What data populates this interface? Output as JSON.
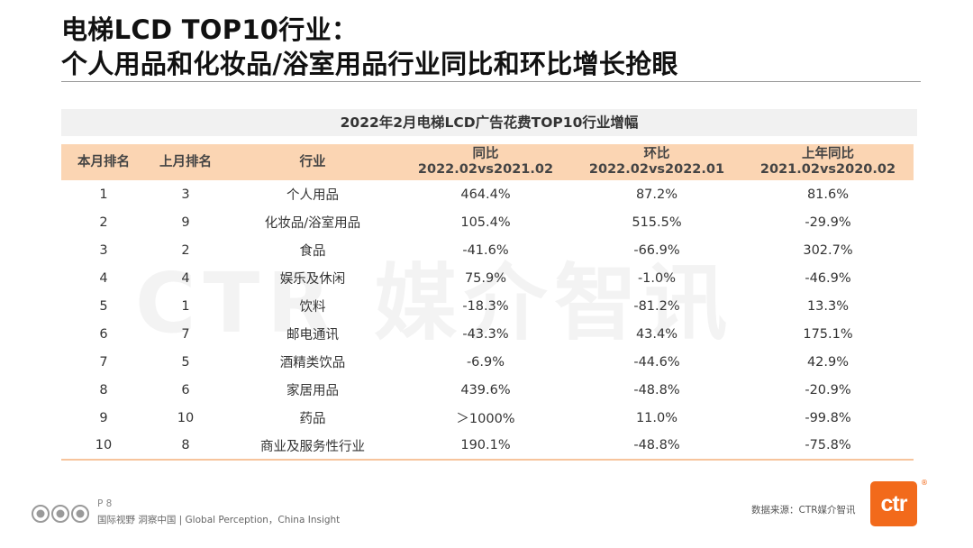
{
  "slide": {
    "title_line1": "电梯LCD TOP10行业：",
    "title_line2": "个人用品和化妆品/浴室用品行业同比和环比增长抢眼",
    "watermark": "CTR 媒介智讯"
  },
  "table": {
    "title": "2022年2月电梯LCD广告花费TOP10行业增幅",
    "headers": {
      "rank_this": "本月排名",
      "rank_last": "上月排名",
      "industry": "行业",
      "yoy_label": "同比",
      "yoy_period": "2022.02vs2021.02",
      "mom_label": "环比",
      "mom_period": "2022.02vs2022.01",
      "prev_yoy_label": "上年同比",
      "prev_yoy_period": "2021.02vs2020.02"
    },
    "rows": [
      {
        "rank": "1",
        "last": "3",
        "industry": "个人用品",
        "yoy": "464.4%",
        "mom": "87.2%",
        "prev": "81.6%"
      },
      {
        "rank": "2",
        "last": "9",
        "industry": "化妆品/浴室用品",
        "yoy": "105.4%",
        "mom": "515.5%",
        "prev": "-29.9%"
      },
      {
        "rank": "3",
        "last": "2",
        "industry": "食品",
        "yoy": "-41.6%",
        "mom": "-66.9%",
        "prev": "302.7%"
      },
      {
        "rank": "4",
        "last": "4",
        "industry": "娱乐及休闲",
        "yoy": "75.9%",
        "mom": "-1.0%",
        "prev": "-46.9%"
      },
      {
        "rank": "5",
        "last": "1",
        "industry": "饮料",
        "yoy": "-18.3%",
        "mom": "-81.2%",
        "prev": "13.3%"
      },
      {
        "rank": "6",
        "last": "7",
        "industry": "邮电通讯",
        "yoy": "-43.3%",
        "mom": "43.4%",
        "prev": "175.1%"
      },
      {
        "rank": "7",
        "last": "5",
        "industry": "酒精类饮品",
        "yoy": "-6.9%",
        "mom": "-44.6%",
        "prev": "42.9%"
      },
      {
        "rank": "8",
        "last": "6",
        "industry": "家居用品",
        "yoy": "439.6%",
        "mom": "-48.8%",
        "prev": "-20.9%"
      },
      {
        "rank": "9",
        "last": "10",
        "industry": "药品",
        "yoy": "＞1000%",
        "mom": "11.0%",
        "prev": "-99.8%"
      },
      {
        "rank": "10",
        "last": "8",
        "industry": "商业及服务性行业",
        "yoy": "190.1%",
        "mom": "-48.8%",
        "prev": "-75.8%"
      }
    ]
  },
  "footer": {
    "page": "P 8",
    "tagline": "国际视野  洞察中国 | Global Perception，China Insight",
    "source": "数据来源：CTR媒介智讯",
    "logo_text": "ctr",
    "reg_mark": "®"
  },
  "colors": {
    "header_bg": "#fbd5b3",
    "title_band_bg": "#f1f1f1",
    "brand_orange": "#f26a1b"
  }
}
